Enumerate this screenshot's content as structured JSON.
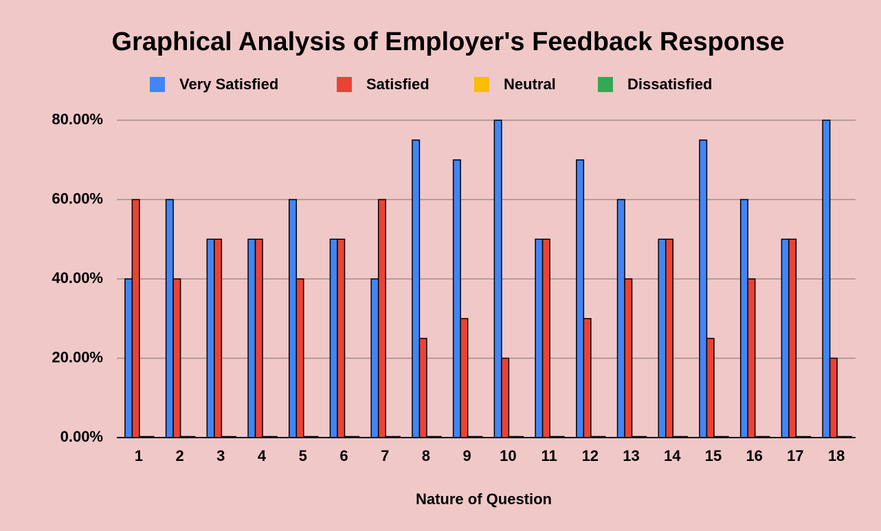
{
  "chart_data": {
    "type": "bar",
    "title": "Graphical Analysis of Employer's Feedback Response",
    "x_label": "Nature of Question",
    "categories": [
      "1",
      "2",
      "3",
      "4",
      "5",
      "6",
      "7",
      "8",
      "9",
      "10",
      "11",
      "12",
      "13",
      "14",
      "15",
      "16",
      "17",
      "18"
    ],
    "series": [
      {
        "name": "Very Satisfied",
        "color": "#4285f4",
        "values": [
          40,
          60,
          50,
          50,
          60,
          50,
          40,
          75,
          70,
          80,
          50,
          70,
          60,
          50,
          75,
          60,
          50,
          80
        ]
      },
      {
        "name": "Satisfied",
        "color": "#ea4335",
        "values": [
          60,
          40,
          50,
          50,
          40,
          50,
          60,
          25,
          30,
          20,
          50,
          30,
          40,
          50,
          25,
          40,
          50,
          20
        ]
      },
      {
        "name": "Neutral",
        "color": "#fbbc04",
        "values": [
          0,
          0,
          0,
          0,
          0,
          0,
          0,
          0,
          0,
          0,
          0,
          0,
          0,
          0,
          0,
          0,
          0,
          0
        ]
      },
      {
        "name": "Dissatisfied",
        "color": "#34a853",
        "values": [
          0,
          0,
          0,
          0,
          0,
          0,
          0,
          0,
          0,
          0,
          0,
          0,
          0,
          0,
          0,
          0,
          0,
          0
        ]
      }
    ],
    "ylim": [
      0,
      80
    ],
    "yticks": [
      {
        "value": 0,
        "label": "0.00%"
      },
      {
        "value": 20,
        "label": "20.00%"
      },
      {
        "value": 40,
        "label": "40.00%"
      },
      {
        "value": 60,
        "label": "60.00%"
      },
      {
        "value": 80,
        "label": "80.00%"
      }
    ],
    "grid": true,
    "legend": "top"
  }
}
